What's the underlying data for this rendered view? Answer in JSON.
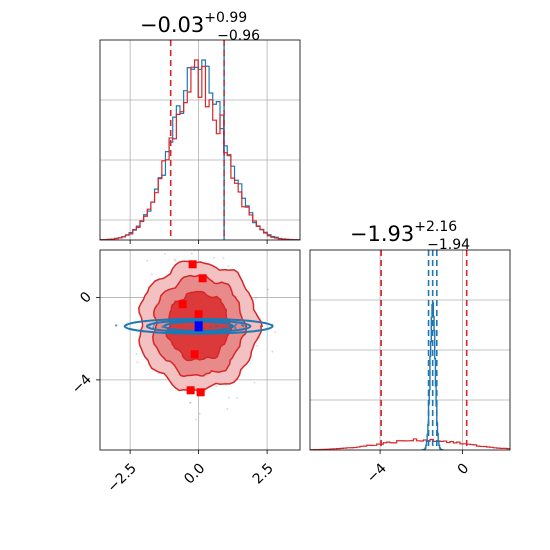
{
  "chart_data": {
    "type": "corner",
    "colors": {
      "red": "#d62728",
      "blue": "#1f77b4",
      "red_fill_outer": "#f3c1c1",
      "red_fill_mid": "#e98a8a",
      "red_fill_inner": "#dc3a3a",
      "marker_blue": "#0000ff",
      "marker_red": "#ff0000"
    },
    "panels": [
      {
        "id": "hist_x",
        "type": "histogram",
        "title": {
          "median": "−0.03",
          "plus": "+0.99",
          "minus": "−0.96"
        },
        "xlim": [
          -3.6,
          3.7
        ],
        "grid": true,
        "quantiles": {
          "blue": [
            0.93
          ],
          "red": [
            -1.02,
            0.93
          ]
        },
        "series": [
          {
            "color": "blue",
            "mean": 0.0,
            "sd": 0.98
          },
          {
            "color": "red",
            "mean": -0.02,
            "sd": 0.97
          }
        ]
      },
      {
        "id": "scatter_xy",
        "type": "2d-contour",
        "xlim": [
          -3.6,
          3.7
        ],
        "ylim": [
          -7.4,
          2.3
        ],
        "xticks": [
          "−2.5",
          "0.0",
          "2.5"
        ],
        "xtick_values": [
          -2.5,
          0.0,
          2.5
        ],
        "yticks": [
          "0",
          "−4"
        ],
        "ytick_values": [
          0,
          -4
        ],
        "grid": true,
        "series": [
          {
            "color": "red",
            "center": [
              0.0,
              -1.4
            ],
            "spread": [
              1.5,
              2.3
            ]
          },
          {
            "color": "blue",
            "center": [
              0.0,
              -1.4
            ],
            "spread": [
              1.8,
              0.22
            ]
          }
        ]
      },
      {
        "id": "hist_y",
        "type": "histogram",
        "title": {
          "median": "−1.93",
          "plus": "+2.16",
          "minus": "−1.94"
        },
        "xlim": [
          -7.4,
          2.3
        ],
        "xticks": [
          "−4",
          "0"
        ],
        "xtick_values": [
          -4,
          0
        ],
        "grid": true,
        "quantiles": {
          "blue": [
            -1.65,
            -1.45,
            -1.25
          ],
          "red": [
            -3.95,
            0.2
          ]
        },
        "series": [
          {
            "color": "blue",
            "mean": -1.45,
            "sd": 0.12
          },
          {
            "color": "red",
            "mean": -1.93,
            "sd": 2.05
          }
        ]
      }
    ]
  }
}
